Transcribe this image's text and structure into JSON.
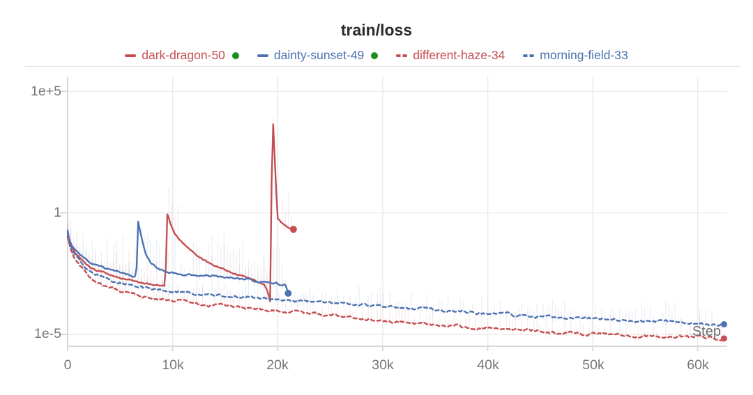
{
  "title": "train/loss",
  "colors": {
    "red": "#c44e52",
    "blue": "#4c72b0",
    "active_green": "#1e8e1e",
    "grid": "#ececec",
    "axis": "#d9d9d9",
    "tick_label": "#767676",
    "title_text": "#2b2b2b"
  },
  "legend": [
    {
      "label": "dark-dragon-50",
      "color": "#c44e52",
      "style": "solid",
      "active": true
    },
    {
      "label": "dainty-sunset-49",
      "color": "#4c72b0",
      "style": "solid",
      "active": true
    },
    {
      "label": "different-haze-34",
      "color": "#c44e52",
      "style": "dashed",
      "active": false
    },
    {
      "label": "morning-field-33",
      "color": "#4c72b0",
      "style": "dashed",
      "active": false
    }
  ],
  "chart_data": {
    "type": "line",
    "title": "train/loss",
    "xlabel": "Step",
    "y_scale": "log",
    "grid": true,
    "x_range": [
      0,
      62800
    ],
    "x_ticks": [
      {
        "value": 0,
        "label": "0"
      },
      {
        "value": 10000,
        "label": "10k"
      },
      {
        "value": 20000,
        "label": "20k"
      },
      {
        "value": 30000,
        "label": "30k"
      },
      {
        "value": 40000,
        "label": "40k"
      },
      {
        "value": 50000,
        "label": "50k"
      },
      {
        "value": 60000,
        "label": "60k"
      }
    ],
    "y_ticks": [
      {
        "value": 100000,
        "label": "1e+5"
      },
      {
        "value": 1,
        "label": "1"
      },
      {
        "value": 1e-05,
        "label": "1e-5"
      }
    ],
    "series": [
      {
        "name": "dark-dragon-50",
        "color": "#c44e52",
        "style": "solid",
        "end_marker": true,
        "noise": 0.07,
        "band": 1.0,
        "points": [
          [
            0,
            0.12
          ],
          [
            150,
            0.06
          ],
          [
            400,
            0.035
          ],
          [
            800,
            0.02
          ],
          [
            1200,
            0.013
          ],
          [
            1700,
            0.008
          ],
          [
            2300,
            0.0055
          ],
          [
            3000,
            0.004
          ],
          [
            4000,
            0.0028
          ],
          [
            5000,
            0.002
          ],
          [
            6000,
            0.0016
          ],
          [
            7000,
            0.0013
          ],
          [
            8000,
            0.0011
          ],
          [
            9000,
            0.00095
          ],
          [
            9300,
            0.0009
          ],
          [
            9500,
            1.0
          ],
          [
            9800,
            0.3
          ],
          [
            10200,
            0.13
          ],
          [
            10800,
            0.065
          ],
          [
            11500,
            0.035
          ],
          [
            12200,
            0.021
          ],
          [
            13000,
            0.012
          ],
          [
            14000,
            0.007
          ],
          [
            15000,
            0.0045
          ],
          [
            16000,
            0.003
          ],
          [
            17000,
            0.002
          ],
          [
            18000,
            0.0014
          ],
          [
            18700,
            0.0011
          ],
          [
            19100,
            0.0005
          ],
          [
            19300,
            0.00022
          ],
          [
            19500,
            20000
          ],
          [
            19980,
            0.55
          ],
          [
            20400,
            0.38
          ],
          [
            21000,
            0.26
          ],
          [
            21500,
            0.21
          ]
        ]
      },
      {
        "name": "dainty-sunset-49",
        "color": "#4c72b0",
        "style": "solid",
        "end_marker": true,
        "noise": 0.07,
        "band": 1.0,
        "points": [
          [
            0,
            0.19
          ],
          [
            150,
            0.08
          ],
          [
            400,
            0.045
          ],
          [
            800,
            0.027
          ],
          [
            1200,
            0.018
          ],
          [
            1700,
            0.012
          ],
          [
            2300,
            0.008
          ],
          [
            3000,
            0.006
          ],
          [
            4000,
            0.0045
          ],
          [
            5000,
            0.0035
          ],
          [
            5700,
            0.003
          ],
          [
            6300,
            0.0027
          ],
          [
            6550,
            0.0026
          ],
          [
            6700,
            0.52
          ],
          [
            6950,
            0.14
          ],
          [
            7200,
            0.045
          ],
          [
            7500,
            0.017
          ],
          [
            8000,
            0.008
          ],
          [
            8600,
            0.005
          ],
          [
            9300,
            0.004
          ],
          [
            10000,
            0.0035
          ],
          [
            11000,
            0.003
          ],
          [
            12000,
            0.0028
          ],
          [
            13000,
            0.0026
          ],
          [
            14000,
            0.0024
          ],
          [
            15000,
            0.0022
          ],
          [
            16000,
            0.002
          ],
          [
            17000,
            0.0018
          ],
          [
            18000,
            0.0016
          ],
          [
            19000,
            0.0014
          ],
          [
            20000,
            0.0012
          ],
          [
            20400,
            0.001
          ],
          [
            20700,
            0.0012
          ],
          [
            21000,
            0.00049
          ]
        ]
      },
      {
        "name": "different-haze-34",
        "color": "#c44e52",
        "style": "dashed",
        "end_marker": true,
        "noise": 0.09,
        "band": 0.5,
        "points": [
          [
            0,
            0.1
          ],
          [
            300,
            0.03
          ],
          [
            700,
            0.012
          ],
          [
            1200,
            0.006
          ],
          [
            1800,
            0.003
          ],
          [
            2500,
            0.0017
          ],
          [
            3200,
            0.0012
          ],
          [
            4000,
            0.00085
          ],
          [
            5000,
            0.00062
          ],
          [
            6000,
            0.00048
          ],
          [
            7000,
            0.0004
          ],
          [
            8000,
            0.00034
          ],
          [
            9000,
            0.0003
          ],
          [
            10000,
            0.00026
          ],
          [
            11000,
            0.00023
          ],
          [
            12000,
            0.0002
          ],
          [
            13500,
            0.00017
          ],
          [
            15000,
            0.000145
          ],
          [
            16500,
            0.000125
          ],
          [
            18000,
            0.000108
          ],
          [
            20000,
            9e-05
          ],
          [
            22000,
            7.6e-05
          ],
          [
            24000,
            6.3e-05
          ],
          [
            26000,
            5.3e-05
          ],
          [
            28000,
            4.5e-05
          ],
          [
            30000,
            3.8e-05
          ],
          [
            32000,
            3.25e-05
          ],
          [
            34000,
            2.75e-05
          ],
          [
            36000,
            2.35e-05
          ],
          [
            38000,
            2.05e-05
          ],
          [
            40000,
            1.78e-05
          ],
          [
            42000,
            1.57e-05
          ],
          [
            44000,
            1.4e-05
          ],
          [
            46000,
            1.25e-05
          ],
          [
            48000,
            1.13e-05
          ],
          [
            50000,
            1.03e-05
          ],
          [
            52000,
            9.5e-06
          ],
          [
            54000,
            8.8e-06
          ],
          [
            56000,
            8.2e-06
          ],
          [
            58000,
            7.7e-06
          ],
          [
            60000,
            7.3e-06
          ],
          [
            62500,
            6.8e-06
          ]
        ]
      },
      {
        "name": "morning-field-33",
        "color": "#4c72b0",
        "style": "dashed",
        "end_marker": true,
        "noise": 0.09,
        "band": 0.5,
        "points": [
          [
            0,
            0.15
          ],
          [
            300,
            0.045
          ],
          [
            700,
            0.02
          ],
          [
            1200,
            0.01
          ],
          [
            1800,
            0.0055
          ],
          [
            2500,
            0.0033
          ],
          [
            3200,
            0.0024
          ],
          [
            4000,
            0.0018
          ],
          [
            5000,
            0.0013
          ],
          [
            6000,
            0.001
          ],
          [
            7000,
            0.00085
          ],
          [
            8000,
            0.00074
          ],
          [
            9000,
            0.00066
          ],
          [
            10000,
            0.0006
          ],
          [
            11000,
            0.00054
          ],
          [
            12000,
            0.0005
          ],
          [
            13500,
            0.00044
          ],
          [
            15000,
            0.00039
          ],
          [
            16500,
            0.00035
          ],
          [
            18000,
            0.00031
          ],
          [
            20000,
            0.00027
          ],
          [
            22000,
            0.000235
          ],
          [
            24000,
            0.000205
          ],
          [
            26000,
            0.00018
          ],
          [
            28000,
            0.000158
          ],
          [
            30000,
            0.00014
          ],
          [
            32000,
            0.000122
          ],
          [
            34000,
            0.000106
          ],
          [
            36000,
            9.25e-05
          ],
          [
            38000,
            8.15e-05
          ],
          [
            40000,
            7.25e-05
          ],
          [
            42000,
            6.45e-05
          ],
          [
            44000,
            5.78e-05
          ],
          [
            46000,
            5.2e-05
          ],
          [
            48000,
            4.72e-05
          ],
          [
            50000,
            4.32e-05
          ],
          [
            52000,
            3.98e-05
          ],
          [
            54000,
            3.68e-05
          ],
          [
            56000,
            3.43e-05
          ],
          [
            58000,
            3.22e-05
          ],
          [
            60000,
            2.75e-05
          ],
          [
            62500,
            2.6e-05
          ]
        ]
      }
    ]
  }
}
